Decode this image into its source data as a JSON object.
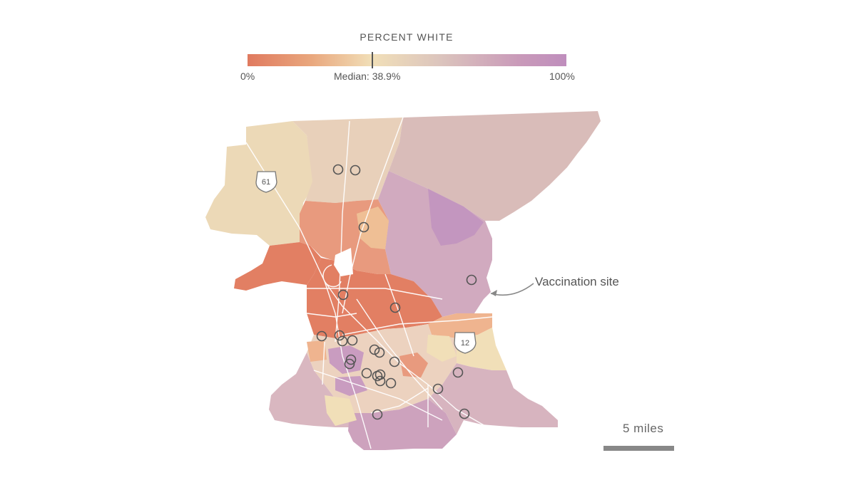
{
  "legend": {
    "title": "PERCENT WHITE",
    "min_label": "0%",
    "median_label": "Median: 38.9%",
    "max_label": "100%",
    "median_value": 38.9,
    "colors": {
      "low": "#e07a5f",
      "mid": "#f1dfb8",
      "high": "#bf8ebd"
    }
  },
  "highways": [
    {
      "shield": "interstate-shield-icon",
      "number": "61"
    },
    {
      "shield": "interstate-shield-icon",
      "number": "12"
    }
  ],
  "annotation": {
    "text": "Vaccination site"
  },
  "scale": {
    "label": "5 miles"
  },
  "vaccination_sites": {
    "count": 24,
    "marker": "circle-icon"
  }
}
